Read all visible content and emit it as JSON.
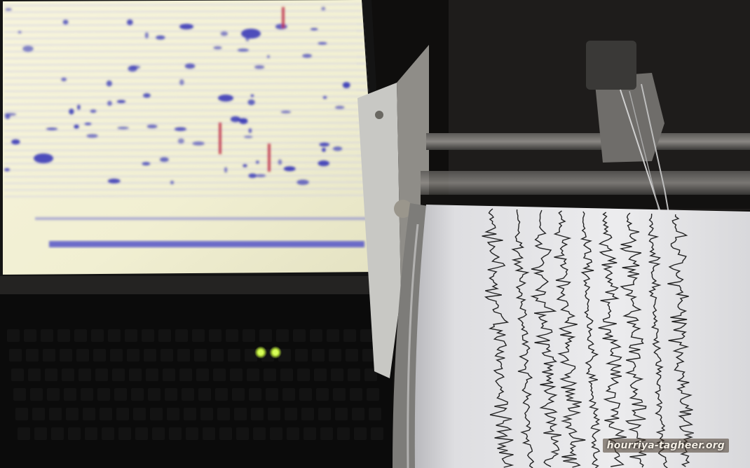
{
  "watermark": {
    "text": "hourriya-tagheer.org"
  },
  "palette": {
    "screen_bg": "#f4f2d6",
    "screen_line": "#c9c8e6",
    "blue_mark": "#3a3bb8",
    "red_mark": "#c0324a",
    "drum_paper": "#e7e7e9",
    "ink": "#121212",
    "led": "#c8f03a"
  }
}
